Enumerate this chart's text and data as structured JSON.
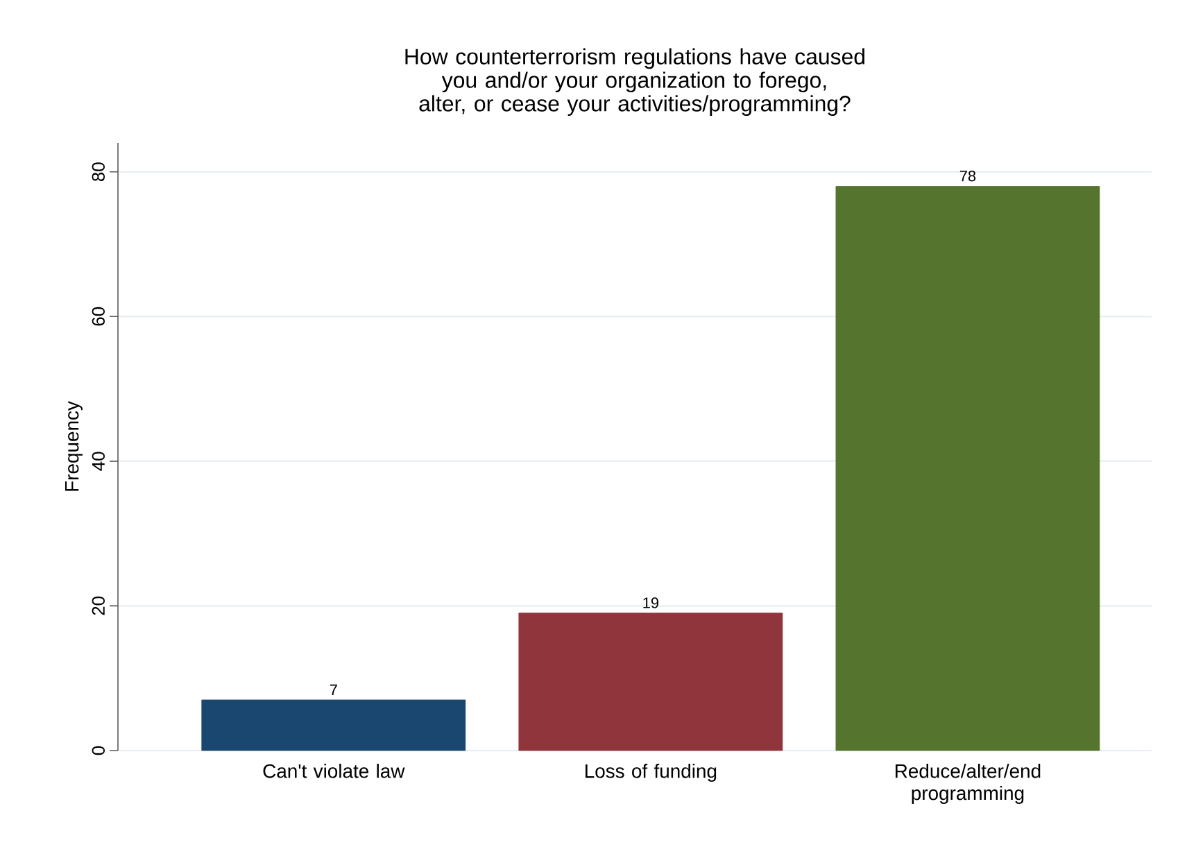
{
  "chart_data": {
    "type": "bar",
    "title": "How counterterrorism regulations have caused you and/or your organization to forego, alter, or cease your activities/programming?",
    "ylabel": "Frequency",
    "categories": [
      "Can't violate law",
      "Loss of funding",
      "Reduce/alter/end programming"
    ],
    "values": [
      7,
      19,
      78
    ],
    "colors": [
      "#1a476f",
      "#90353b",
      "#55752f"
    ],
    "ylim": [
      0,
      84
    ],
    "yticks": [
      0,
      20,
      40,
      60,
      80
    ],
    "grid": "y",
    "data_labels": true
  }
}
